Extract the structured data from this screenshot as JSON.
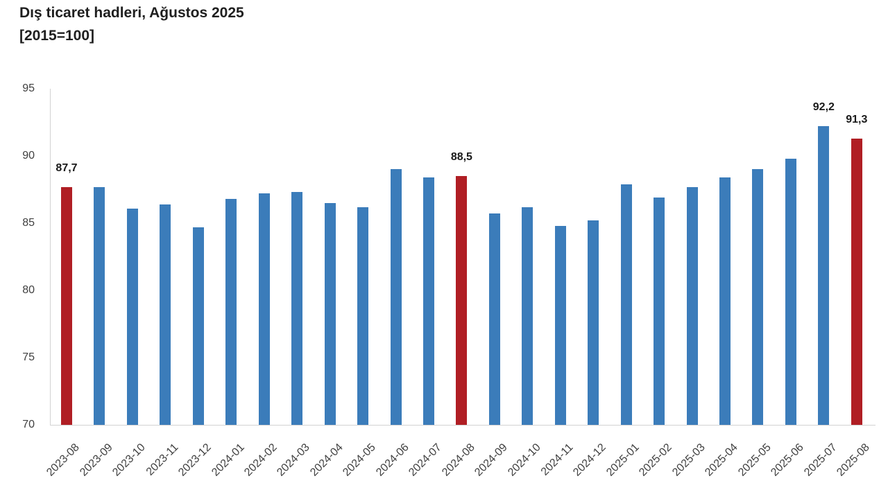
{
  "header": {
    "title_line1": "Dış ticaret hadleri, Ağustos 2025",
    "title_line2": "[2015=100]"
  },
  "chart_data": {
    "type": "bar",
    "title": "Dış ticaret hadleri, Ağustos 2025",
    "subtitle": "[2015=100]",
    "categories": [
      "2023-08",
      "2023-09",
      "2023-10",
      "2023-11",
      "2023-12",
      "2024-01",
      "2024-02",
      "2024-03",
      "2024-04",
      "2024-05",
      "2024-06",
      "2024-07",
      "2024-08",
      "2024-09",
      "2024-10",
      "2024-11",
      "2024-12",
      "2025-01",
      "2025-02",
      "2025-03",
      "2025-04",
      "2025-05",
      "2025-06",
      "2025-07",
      "2025-08"
    ],
    "values": [
      87.7,
      87.7,
      86.1,
      86.4,
      84.7,
      86.8,
      87.2,
      87.3,
      86.5,
      86.2,
      89.0,
      88.4,
      88.5,
      85.7,
      86.2,
      84.8,
      85.2,
      87.9,
      86.9,
      87.7,
      88.4,
      89.0,
      89.8,
      92.2,
      91.3
    ],
    "highlight_indices": [
      0,
      12,
      24
    ],
    "data_labels": [
      {
        "index": 0,
        "text": "87,7"
      },
      {
        "index": 12,
        "text": "88,5"
      },
      {
        "index": 23,
        "text": "92,2"
      },
      {
        "index": 24,
        "text": "91,3"
      }
    ],
    "xlabel": "",
    "ylabel": "",
    "ylim": [
      70,
      95
    ],
    "yticks": [
      70,
      75,
      80,
      85,
      90,
      95
    ],
    "grid": false,
    "legend": false,
    "colors": {
      "bar": "#3b7cba",
      "highlight": "#b01e24",
      "axis": "#d2d2d2",
      "tick_text": "#404040",
      "data_label_text": "#1a1a1a",
      "title_text": "#1f1f1f"
    }
  }
}
